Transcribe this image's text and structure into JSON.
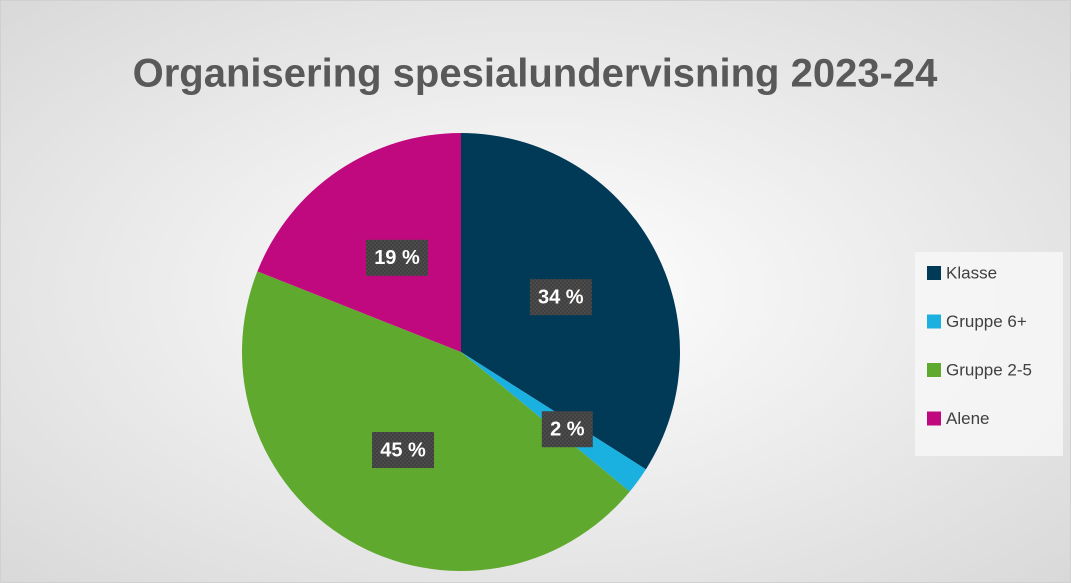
{
  "chart_data": {
    "type": "pie",
    "title": "Organisering spesialundervisning 2023-24",
    "categories": [
      "Klasse",
      "Gruppe 6+",
      "Gruppe 2-5",
      "Alene"
    ],
    "values": [
      34,
      2,
      45,
      19
    ],
    "value_labels": [
      "34 %",
      "2 %",
      "45 %",
      "19 %"
    ],
    "colors": [
      "#003a57",
      "#1ab0e0",
      "#5fa92e",
      "#c0097e"
    ],
    "legend": "right"
  }
}
